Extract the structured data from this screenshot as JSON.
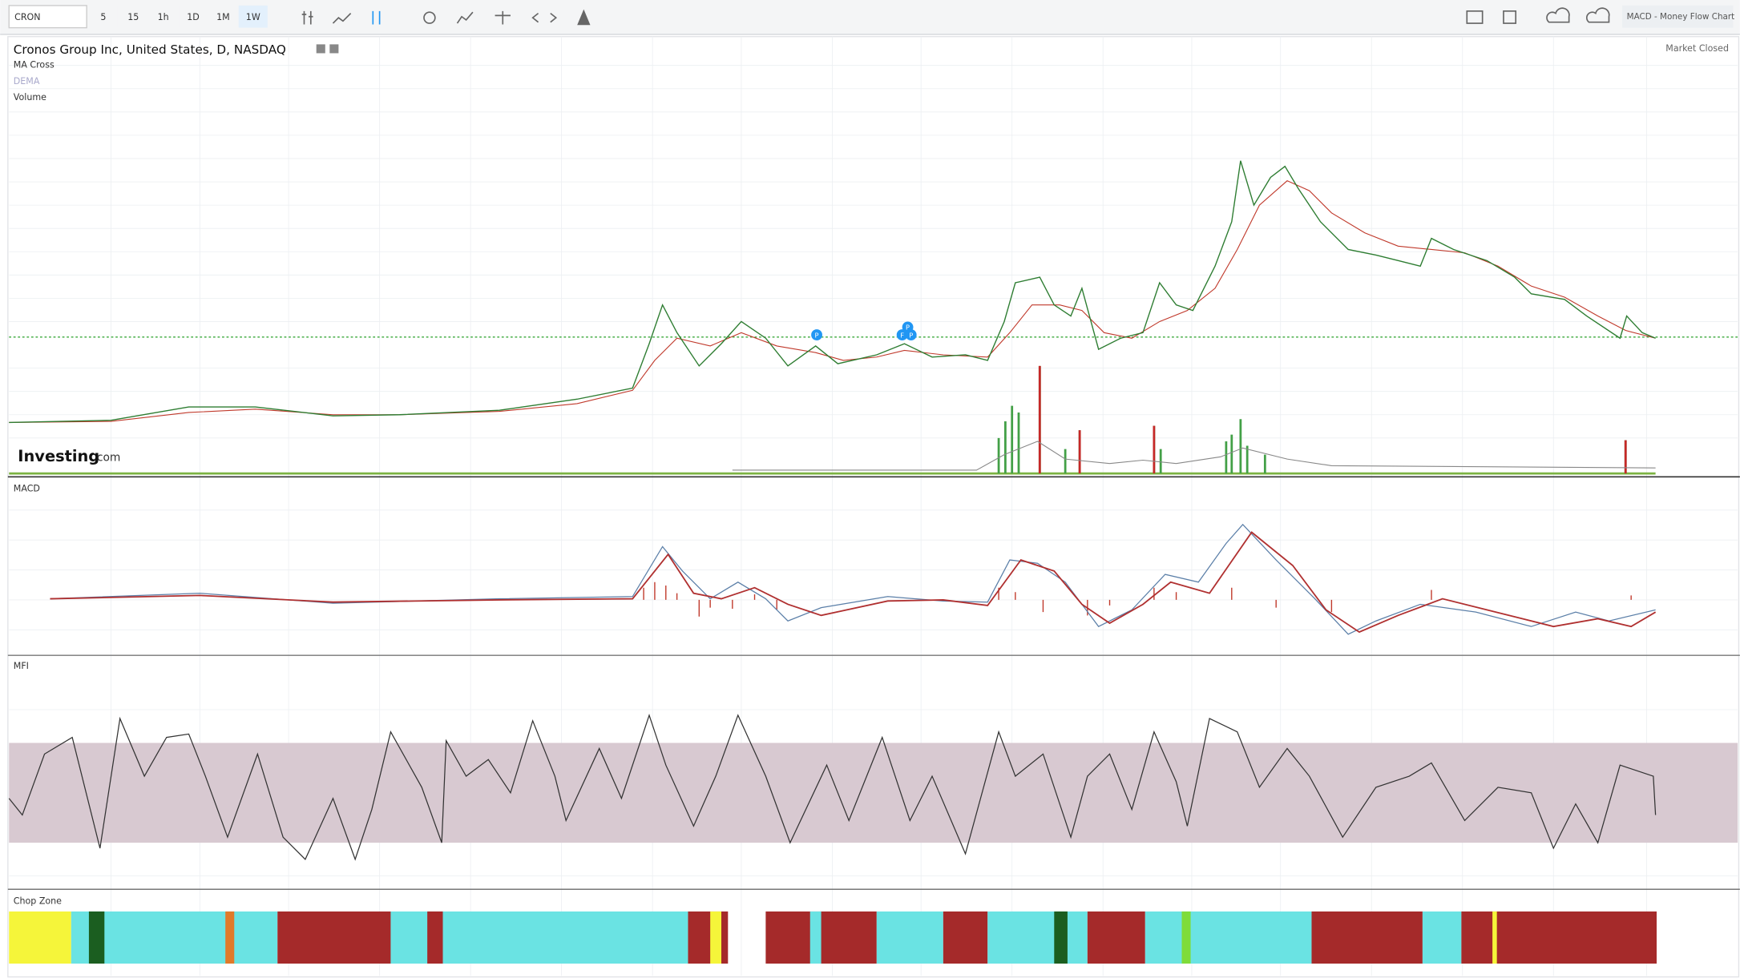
{
  "toolbar": {
    "symbol": "CRON",
    "intervals": [
      "5",
      "15",
      "1h",
      "1D",
      "1M",
      "1W"
    ],
    "layout_name": "MACD - Money Flow Chart"
  },
  "main": {
    "title": "Cronos Group Inc, United States, D, NASDAQ",
    "indicators": [
      "MA Cross",
      "DEMA",
      "Volume"
    ],
    "status": "Market Closed",
    "logo": {
      "name": "Investing",
      "suffix": ".com"
    },
    "markers": [
      "P",
      "P",
      "F",
      "P"
    ]
  },
  "panes": {
    "macd": "MACD",
    "mfi": "MFI",
    "chop_zone": "Chop Zone"
  }
}
